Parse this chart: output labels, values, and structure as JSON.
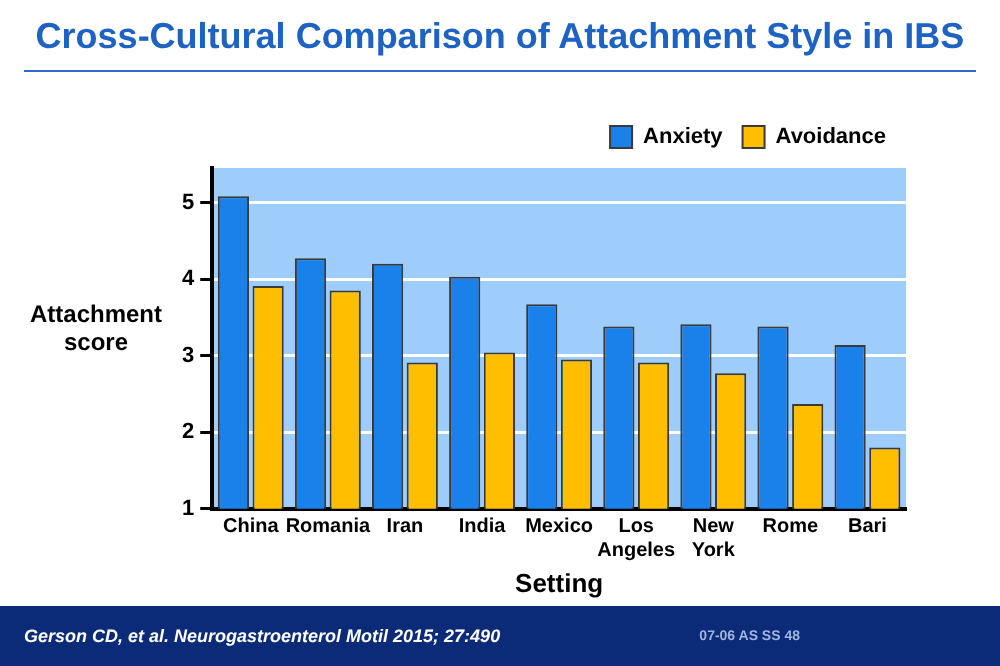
{
  "chart_data": {
    "type": "bar",
    "title": "Cross-Cultural Comparison of Attachment Style in IBS",
    "xlabel": "Setting",
    "ylabel": "Attachment score",
    "categories": [
      "China",
      "Romania",
      "Iran",
      "India",
      "Mexico",
      "Los Angeles",
      "New York",
      "Rome",
      "Bari"
    ],
    "series": [
      {
        "name": "Anxiety",
        "color": "#1a80ea",
        "values": [
          5.08,
          4.27,
          4.2,
          4.03,
          3.67,
          3.38,
          3.41,
          3.38,
          3.14
        ]
      },
      {
        "name": "Avoidance",
        "color": "#ffbf00",
        "values": [
          3.91,
          3.85,
          2.91,
          3.04,
          2.95,
          2.91,
          2.77,
          2.37,
          1.8
        ]
      }
    ],
    "ylim": [
      1,
      5.45
    ],
    "yticks": [
      1,
      2,
      3,
      4,
      5
    ],
    "grid": "y",
    "legend": "top right",
    "annotations": [
      "Gerson CD, et al.  Neurogastroenterol Motil 2015;  27:490",
      "07-06  AS  SS 48"
    ]
  }
}
